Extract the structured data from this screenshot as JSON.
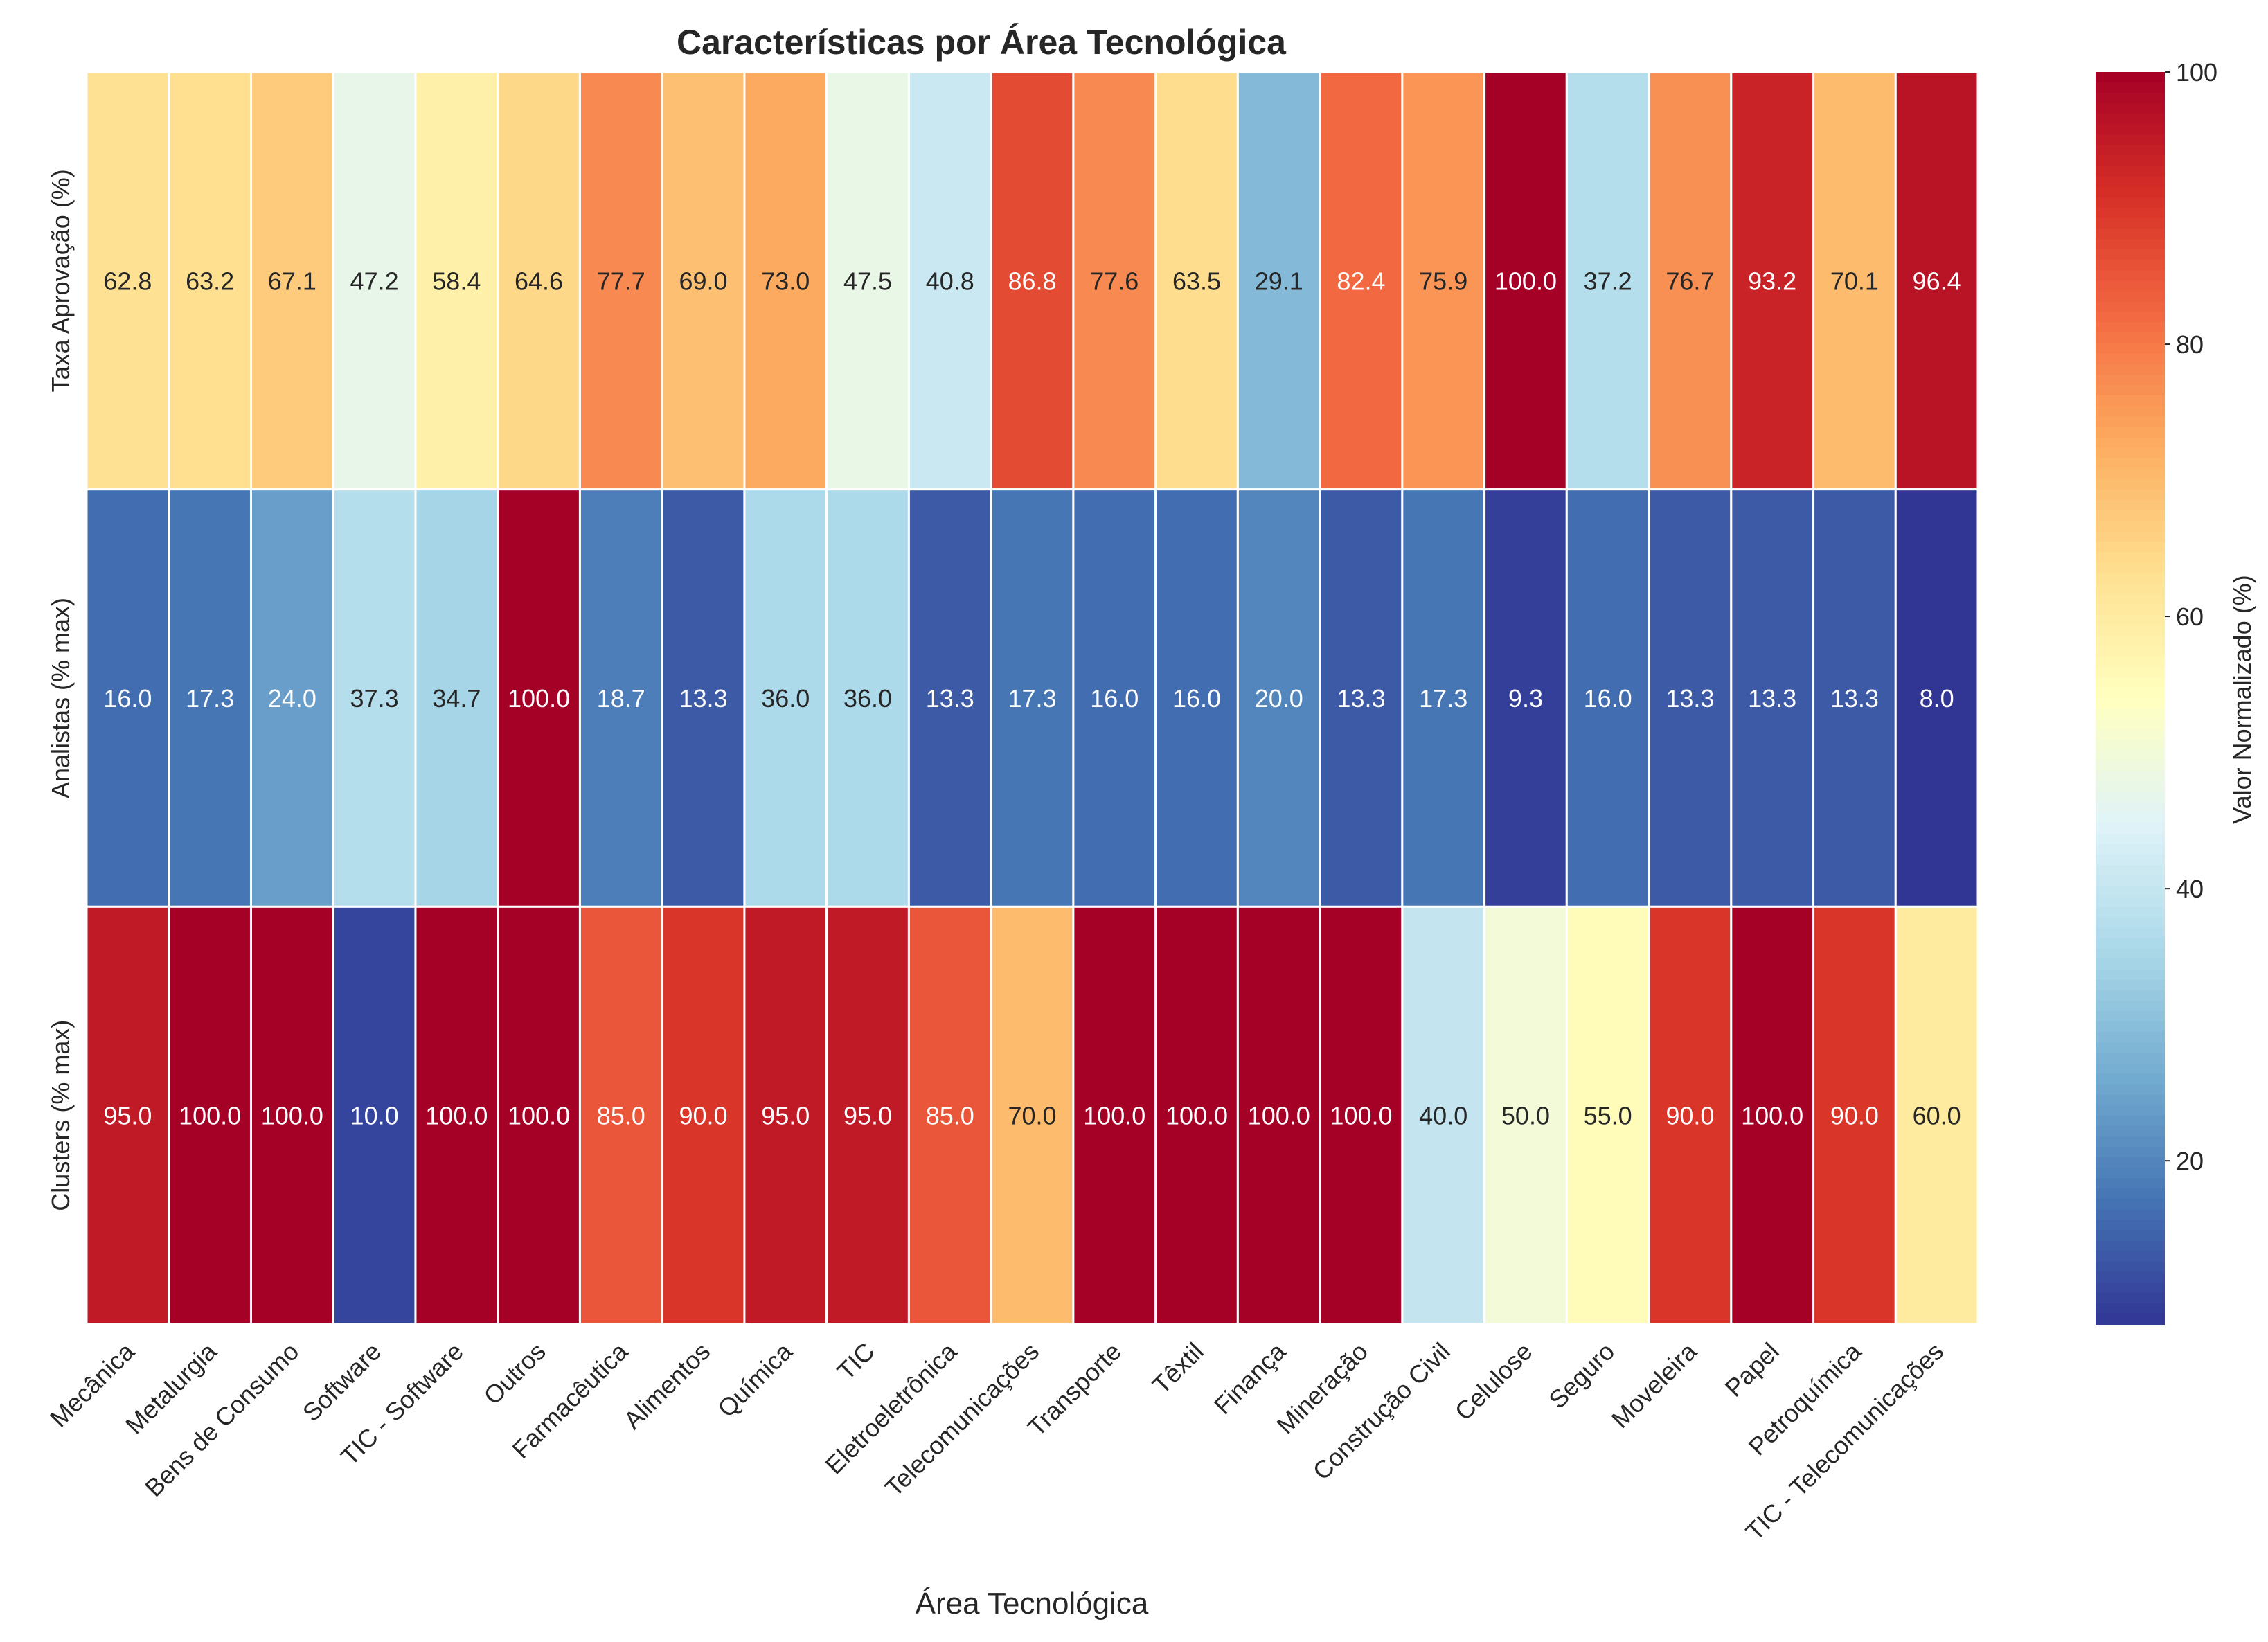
{
  "chart_data": {
    "type": "heatmap",
    "title": "Características por Área Tecnológica",
    "xlabel": "Área Tecnológica",
    "colorbar_label": "Valor Normalizado (%)",
    "colorbar_ticks": [
      20,
      40,
      60,
      80,
      100
    ],
    "colorbar_range": [
      8.0,
      100.0
    ],
    "colormap": "RdYlBu_r",
    "colormap_stops": [
      "#313695",
      "#4575b4",
      "#74add1",
      "#abd9e9",
      "#e0f3f8",
      "#ffffbf",
      "#fee090",
      "#fdae61",
      "#f46d43",
      "#d73027",
      "#a50026"
    ],
    "categories": [
      "Mecânica",
      "Metalurgia",
      "Bens de Consumo",
      "Software",
      "TIC - Software",
      "Outros",
      "Farmacêutica",
      "Alimentos",
      "Química",
      "TIC",
      "Eletroeletrônica",
      "Telecomunicações",
      "Transporte",
      "Têxtil",
      "Finança",
      "Mineração",
      "Construção Civil",
      "Celulose",
      "Seguro",
      "Moveleira",
      "Papel",
      "Petroquímica",
      "TIC - Telecomunicações"
    ],
    "rows": [
      "Taxa Aprovação (%)",
      "Analistas (% max)",
      "Clusters (% max)"
    ],
    "values": [
      [
        62.8,
        63.2,
        67.1,
        47.2,
        58.4,
        64.6,
        77.7,
        69.0,
        73.0,
        47.5,
        40.8,
        86.8,
        77.6,
        63.5,
        29.1,
        82.4,
        75.9,
        100.0,
        37.2,
        76.7,
        93.2,
        70.1,
        96.4
      ],
      [
        16.0,
        17.3,
        24.0,
        37.3,
        34.7,
        100.0,
        18.7,
        13.3,
        36.0,
        36.0,
        13.3,
        17.3,
        16.0,
        16.0,
        20.0,
        13.3,
        17.3,
        9.3,
        16.0,
        13.3,
        13.3,
        13.3,
        8.0
      ],
      [
        95.0,
        100.0,
        100.0,
        10.0,
        100.0,
        100.0,
        85.0,
        90.0,
        95.0,
        95.0,
        85.0,
        70.0,
        100.0,
        100.0,
        100.0,
        100.0,
        40.0,
        50.0,
        55.0,
        90.0,
        100.0,
        90.0,
        60.0
      ]
    ]
  }
}
